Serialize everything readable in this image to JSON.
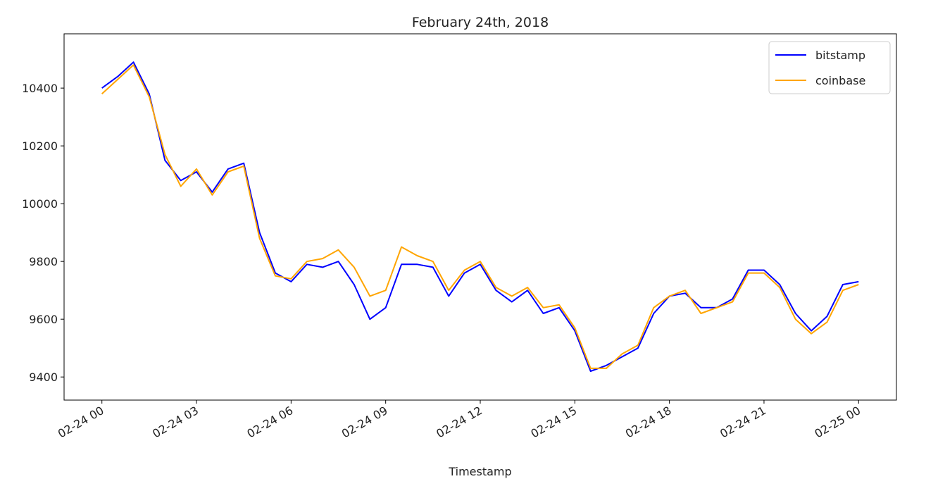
{
  "chart_data": {
    "type": "line",
    "title": "February 24th, 2018",
    "x_label": "Timestamp",
    "x": [
      0,
      0.5,
      1,
      1.5,
      2,
      2.5,
      3,
      3.5,
      4,
      4.5,
      5,
      5.5,
      6,
      6.5,
      7,
      7.5,
      8,
      8.5,
      9,
      9.5,
      10,
      10.5,
      11,
      11.5,
      12,
      12.5,
      13,
      13.5,
      14,
      14.5,
      15,
      15.5,
      16,
      16.5,
      17,
      17.5,
      18,
      18.5,
      19,
      19.5,
      20,
      20.5,
      21,
      21.5,
      22,
      22.5,
      23,
      23.5,
      24
    ],
    "series": [
      {
        "name": "bitstamp",
        "color": "#0000ff",
        "values": [
          10400,
          10440,
          10490,
          10380,
          10150,
          10080,
          10110,
          10040,
          10120,
          10140,
          9900,
          9760,
          9730,
          9790,
          9780,
          9800,
          9720,
          9600,
          9640,
          9790,
          9790,
          9780,
          9680,
          9760,
          9790,
          9700,
          9660,
          9700,
          9620,
          9640,
          9560,
          9420,
          9440,
          9470,
          9500,
          9620,
          9680,
          9690,
          9640,
          9640,
          9670,
          9770,
          9770,
          9720,
          9620,
          9560,
          9610,
          9720,
          9730
        ]
      },
      {
        "name": "coinbase",
        "color": "#ffa500",
        "values": [
          10380,
          10430,
          10480,
          10370,
          10170,
          10060,
          10120,
          10030,
          10110,
          10130,
          9880,
          9750,
          9740,
          9800,
          9810,
          9840,
          9780,
          9680,
          9700,
          9850,
          9820,
          9800,
          9700,
          9770,
          9800,
          9710,
          9680,
          9710,
          9640,
          9650,
          9570,
          9430,
          9430,
          9480,
          9510,
          9640,
          9680,
          9700,
          9620,
          9640,
          9660,
          9760,
          9760,
          9710,
          9600,
          9550,
          9590,
          9700,
          9720
        ]
      }
    ],
    "xlim": [
      -1.2,
      25.2
    ],
    "xticks": [
      {
        "value": 0,
        "label": "02-24 00"
      },
      {
        "value": 3,
        "label": "02-24 03"
      },
      {
        "value": 6,
        "label": "02-24 06"
      },
      {
        "value": 9,
        "label": "02-24 09"
      },
      {
        "value": 12,
        "label": "02-24 12"
      },
      {
        "value": 15,
        "label": "02-24 15"
      },
      {
        "value": 18,
        "label": "02-24 18"
      },
      {
        "value": 21,
        "label": "02-24 21"
      },
      {
        "value": 24,
        "label": "02-25 00"
      }
    ],
    "ylim": [
      9320,
      10588
    ],
    "yticks": [
      9400,
      9600,
      9800,
      10000,
      10200,
      10400
    ],
    "grid": false,
    "legend": "upper right"
  }
}
